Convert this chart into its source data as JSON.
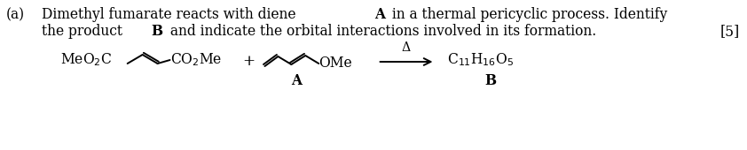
{
  "line1_pre": "Dimethyl fumarate reacts with diene ",
  "line1_bold": "A",
  "line1_post": " in a thermal pericyclic process. Identify",
  "line2_pre": "the product ",
  "line2_bold": "B",
  "line2_post": " and indicate the orbital interactions involved in its formation.",
  "score": "[5]",
  "label_a": "(a)",
  "label_B": "B",
  "label_A": "A",
  "delta_symbol": "Δ",
  "bg_color": "#ffffff",
  "text_color": "#000000",
  "fontsize_main": 11.2
}
